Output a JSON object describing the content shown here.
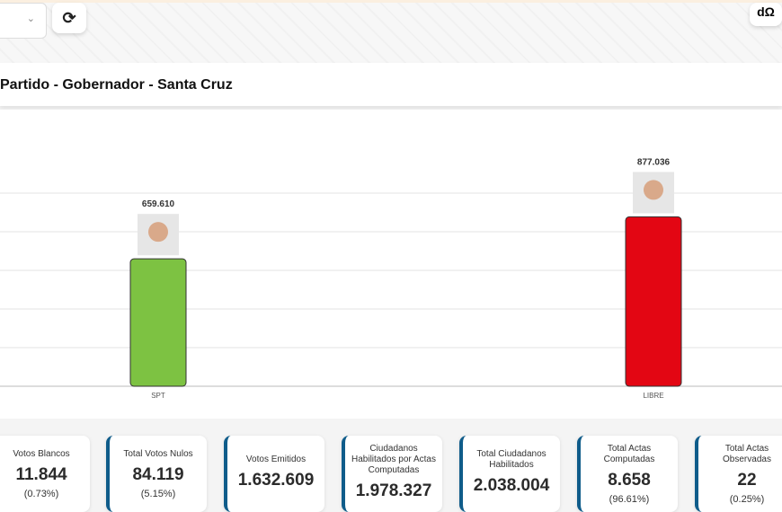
{
  "toolbar": {
    "refresh_icon": "refresh-icon",
    "chart_icon": "bar-chart-icon",
    "chart_label": "dΩ",
    "select_chevron": "⌄"
  },
  "title": "Partido - Gobernador - Santa Cruz",
  "chart_data": {
    "type": "bar",
    "categories": [
      "SPT",
      "LIBRE"
    ],
    "values": [
      659610,
      877036
    ],
    "data_labels": [
      "659.610",
      "877.036"
    ],
    "colors": [
      "#7dc242",
      "#e30613"
    ],
    "ylim": [
      0,
      1000000
    ],
    "grid": true,
    "ytick_step": 200000
  },
  "cards": [
    {
      "label": "Votos Blancos",
      "value": "11.844",
      "pct": "(0.73%)"
    },
    {
      "label": "Total Votos Nulos",
      "value": "84.119",
      "pct": "(5.15%)"
    },
    {
      "label": "Votos Emitidos",
      "value": "1.632.609",
      "pct": ""
    },
    {
      "label": "Ciudadanos Habilitados por Actas Computadas",
      "value": "1.978.327",
      "pct": ""
    },
    {
      "label": "Total Ciudadanos Habilitados",
      "value": "2.038.004",
      "pct": ""
    },
    {
      "label": "Total Actas Computadas",
      "value": "8.658",
      "pct": "(96.61%)"
    },
    {
      "label": "Total Actas Observadas",
      "value": "22",
      "pct": "(0.25%)"
    }
  ]
}
